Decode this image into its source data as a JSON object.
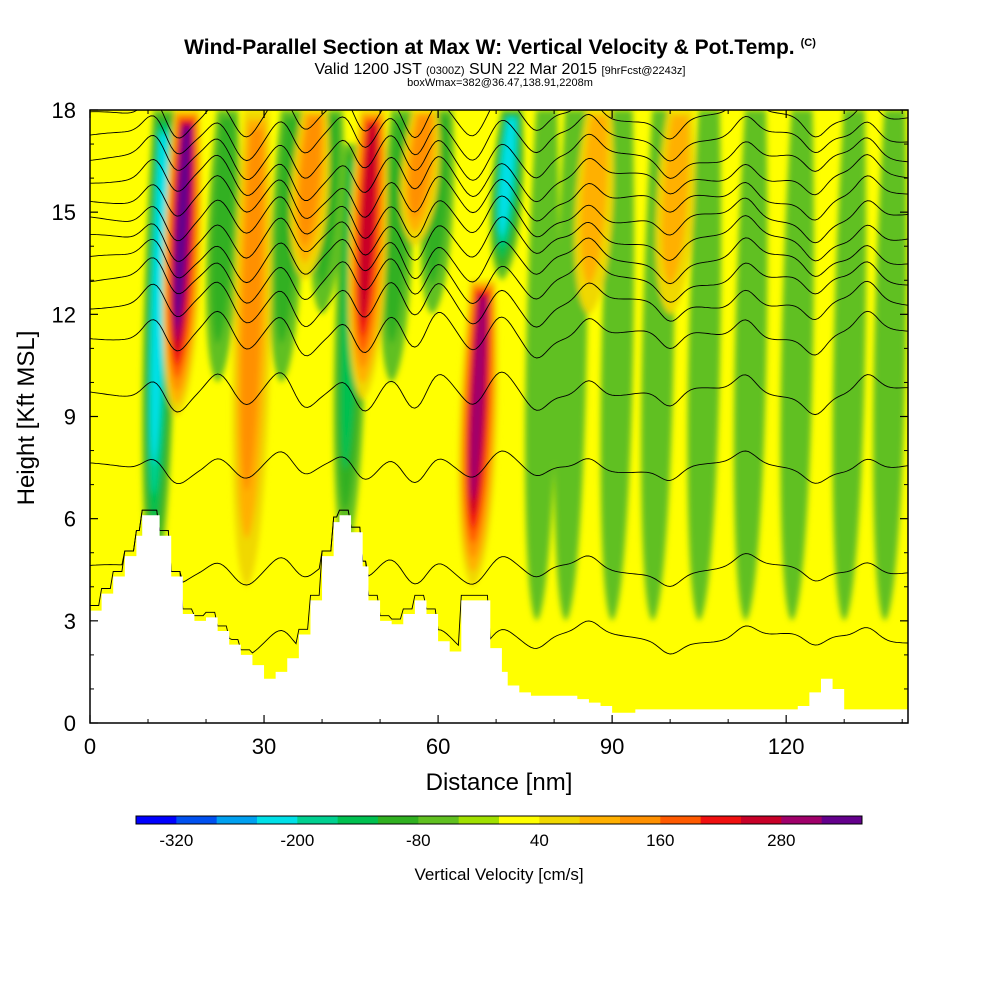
{
  "titles": {
    "main": "Wind-Parallel Section at Max W: Vertical Velocity & Pot.Temp.",
    "copyright": "(C)",
    "valid_prefix": "Valid 1200 JST",
    "valid_utc": "(0300Z)",
    "valid_date": "SUN 22 Mar 2015",
    "forecast": "[9hrFcst@2243z]",
    "box_info": "boxWmax=382@36.47,138.91,2208m"
  },
  "chart_data": {
    "type": "heatmap",
    "xlabel": "Distance [nm]",
    "ylabel": "Height [Kft MSL]",
    "xlim": [
      0,
      141
    ],
    "ylim": [
      0,
      18
    ],
    "x_ticks": [
      "0",
      "30",
      "60",
      "90",
      "120"
    ],
    "y_ticks": [
      "0",
      "3",
      "6",
      "9",
      "12",
      "15",
      "18"
    ],
    "colorbar": {
      "label": "Vertical Velocity [cm/s]",
      "tick_labels": [
        "-320",
        "-200",
        "-80",
        "40",
        "160",
        "280"
      ],
      "levels": [
        -360,
        -320,
        -280,
        -240,
        -200,
        -160,
        -120,
        -80,
        -40,
        0,
        40,
        80,
        120,
        160,
        200,
        240,
        280,
        320,
        360
      ],
      "colors": [
        "#0000ff",
        "#0050f0",
        "#00a0f0",
        "#00e0e8",
        "#00d090",
        "#00c050",
        "#30b020",
        "#60c020",
        "#a0e000",
        "#ffff00",
        "#f0d800",
        "#ffb000",
        "#ff9000",
        "#ff5a00",
        "#f01010",
        "#c80028",
        "#a0006a",
        "#64008c"
      ]
    },
    "updraft_cores": [
      {
        "x": 15,
        "ztop": 18,
        "zbot": 9,
        "peak": 340
      },
      {
        "x": 47,
        "ztop": 18,
        "zbot": 9.5,
        "peak": 250
      },
      {
        "x": 66,
        "ztop": 13,
        "zbot": 4,
        "peak": 280
      },
      {
        "x": 27,
        "ztop": 18,
        "zbot": 4,
        "peak": 140
      },
      {
        "x": 37,
        "ztop": 18,
        "zbot": 13,
        "peak": 120
      },
      {
        "x": 56,
        "ztop": 18,
        "zbot": 14,
        "peak": 140
      },
      {
        "x": 86,
        "ztop": 18,
        "zbot": 12,
        "peak": 90
      },
      {
        "x": 100,
        "ztop": 18,
        "zbot": 12,
        "peak": 80
      }
    ],
    "downdraft_cores": [
      {
        "x": 11,
        "ztop": 18,
        "zbot": 4,
        "peak": -230
      },
      {
        "x": 44,
        "ztop": 17,
        "zbot": 5,
        "peak": -150
      },
      {
        "x": 71,
        "ztop": 18,
        "zbot": 13,
        "peak": -230
      },
      {
        "x": 22,
        "ztop": 18,
        "zbot": 10,
        "peak": -90
      },
      {
        "x": 33,
        "ztop": 18,
        "zbot": 10,
        "peak": -90
      },
      {
        "x": 40,
        "ztop": 18,
        "zbot": 12,
        "peak": -90
      },
      {
        "x": 52,
        "ztop": 18,
        "zbot": 10,
        "peak": -90
      },
      {
        "x": 59,
        "ztop": 18,
        "zbot": 12,
        "peak": -90
      },
      {
        "x": 77,
        "ztop": 18,
        "zbot": 3,
        "peak": -70
      },
      {
        "x": 82,
        "ztop": 18,
        "zbot": 3,
        "peak": -70
      },
      {
        "x": 90,
        "ztop": 18,
        "zbot": 3,
        "peak": -60
      },
      {
        "x": 97,
        "ztop": 18,
        "zbot": 3,
        "peak": -60
      },
      {
        "x": 105,
        "ztop": 18,
        "zbot": 3,
        "peak": -60
      },
      {
        "x": 113,
        "ztop": 18,
        "zbot": 3,
        "peak": -60
      },
      {
        "x": 121,
        "ztop": 18,
        "zbot": 3,
        "peak": -60
      },
      {
        "x": 130,
        "ztop": 18,
        "zbot": 3,
        "peak": -60
      },
      {
        "x": 137,
        "ztop": 18,
        "zbot": 3,
        "peak": -60
      }
    ],
    "terrain_x": [
      0,
      2,
      4,
      6,
      8,
      9,
      11,
      12,
      14,
      16,
      18,
      20,
      22,
      24,
      26,
      28,
      30,
      32,
      34,
      36,
      38,
      40,
      42,
      43,
      45,
      47,
      48,
      50,
      52,
      54,
      56,
      58,
      60,
      62,
      64,
      66,
      68,
      69,
      71,
      72,
      74,
      76,
      78,
      80,
      82,
      84,
      86,
      88,
      90,
      92,
      94,
      96,
      98,
      100,
      102,
      104,
      106,
      108,
      110,
      112,
      114,
      116,
      118,
      120,
      122,
      124,
      126,
      128,
      130,
      132,
      134,
      136,
      138,
      140,
      141
    ],
    "terrain_z": [
      3.3,
      3.8,
      4.3,
      4.9,
      5.5,
      6.1,
      6.1,
      5.5,
      4.3,
      3.2,
      3.0,
      3.1,
      2.7,
      2.3,
      2.0,
      1.7,
      1.3,
      1.5,
      1.9,
      2.6,
      3.6,
      4.9,
      5.9,
      6.1,
      5.6,
      4.6,
      3.6,
      3.0,
      2.9,
      3.2,
      3.6,
      3.2,
      2.4,
      2.1,
      3.6,
      3.6,
      3.6,
      2.2,
      1.5,
      1.1,
      0.9,
      0.8,
      0.8,
      0.8,
      0.8,
      0.7,
      0.6,
      0.5,
      0.3,
      0.3,
      0.4,
      0.4,
      0.4,
      0.4,
      0.4,
      0.4,
      0.4,
      0.4,
      0.4,
      0.4,
      0.4,
      0.4,
      0.4,
      0.4,
      0.5,
      0.9,
      1.3,
      1.0,
      0.4,
      0.4,
      0.4,
      0.4,
      0.4,
      0.4,
      0.4
    ],
    "theta_isolines_z0": [
      2.5,
      4.5,
      7.5,
      9.7,
      11.4,
      12.3,
      13.0,
      13.6,
      14.2,
      14.8,
      15.4,
      16.0,
      16.6,
      17.2,
      17.8
    ]
  }
}
